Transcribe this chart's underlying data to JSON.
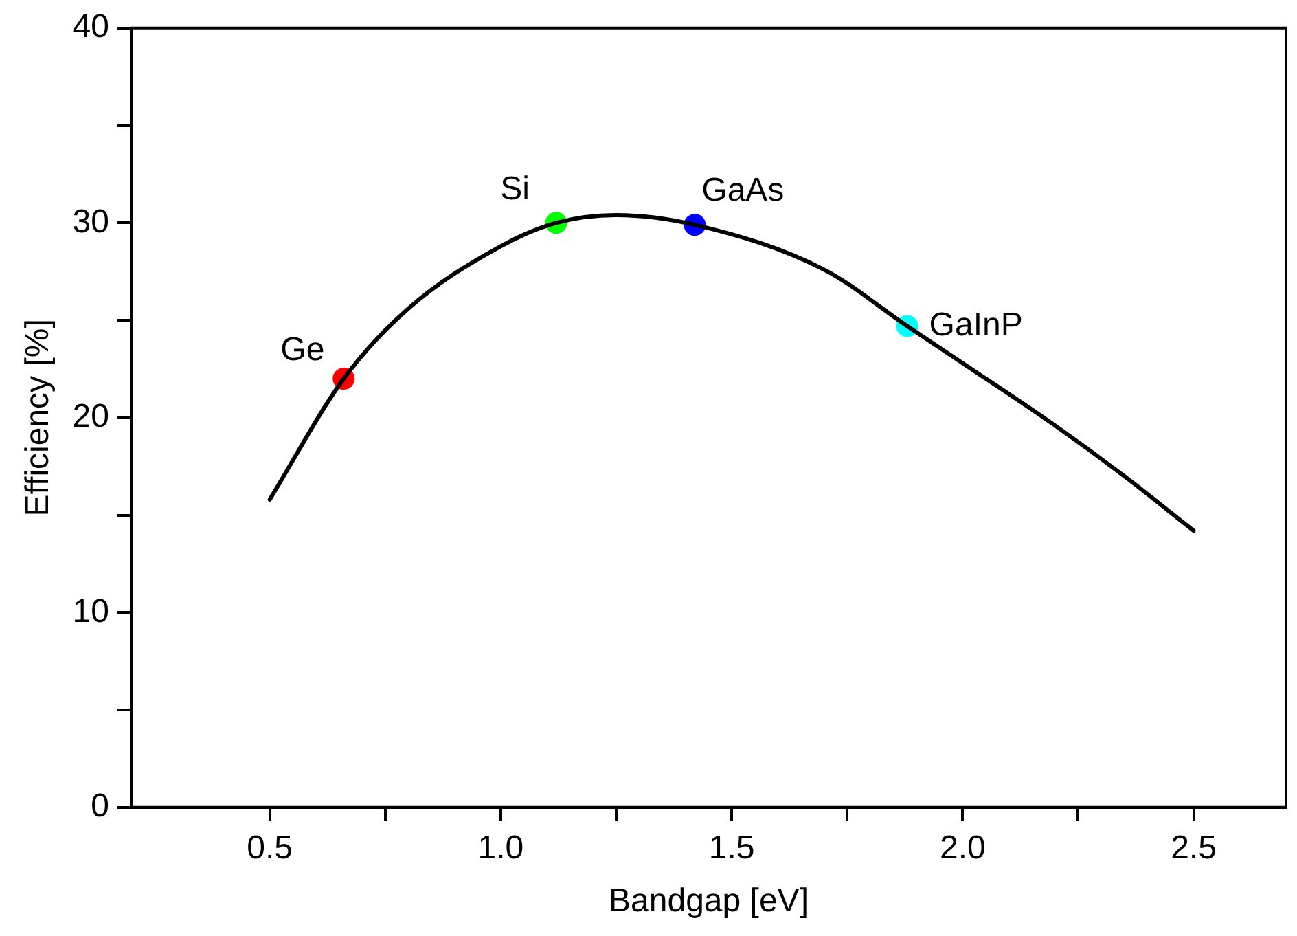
{
  "chart_data": {
    "type": "line",
    "xlabel": "Bandgap [eV]",
    "ylabel": "Efficiency [%]",
    "xlim": [
      0.2,
      2.7
    ],
    "xticks": [
      0.5,
      {
        "value": 0.75,
        "label": null
      },
      {
        "value": 1.0,
        "label": "1.0"
      },
      {
        "value": 1.25,
        "label": null
      },
      1.5,
      {
        "value": 1.75,
        "label": null
      },
      {
        "value": 2.0,
        "label": "2.0"
      },
      {
        "value": 2.25,
        "label": null
      },
      2.5
    ],
    "ylim": [
      0,
      40
    ],
    "yticks": [
      0,
      {
        "value": 5,
        "label": null
      },
      10,
      {
        "value": 15,
        "label": null
      },
      20,
      {
        "value": 25,
        "label": null
      },
      30,
      {
        "value": 35,
        "label": null
      },
      40
    ],
    "grid": false,
    "legend": false,
    "series": [
      {
        "color": "#000000",
        "marker": "none",
        "line_style": "solid",
        "x": [
          0.5,
          0.66,
          0.8,
          1.0,
          1.12,
          1.25,
          1.42,
          1.7,
          1.88,
          2.0,
          2.2,
          2.35,
          2.5
        ],
        "values": [
          15.8,
          22.0,
          25.6,
          28.8,
          30.0,
          30.4,
          29.9,
          27.6,
          24.7,
          22.8,
          19.6,
          17.0,
          14.2
        ]
      },
      {
        "type": "scatter",
        "marker": "circle",
        "x": [
          0.66,
          1.12,
          1.42,
          1.88
        ],
        "values": [
          22.0,
          30.0,
          29.9,
          24.7
        ],
        "colors": [
          "#ff0000",
          "#00ff00",
          "#0000ff",
          "#00ffff"
        ]
      }
    ],
    "annotations": [
      {
        "text": "Ge",
        "x": 0.66,
        "y": 22.0
      },
      {
        "text": "Si",
        "x": 1.12,
        "y": 30.0
      },
      {
        "text": "GaAs",
        "x": 1.42,
        "y": 29.9
      },
      {
        "text": "GaInP",
        "x": 1.88,
        "y": 24.7
      }
    ]
  }
}
